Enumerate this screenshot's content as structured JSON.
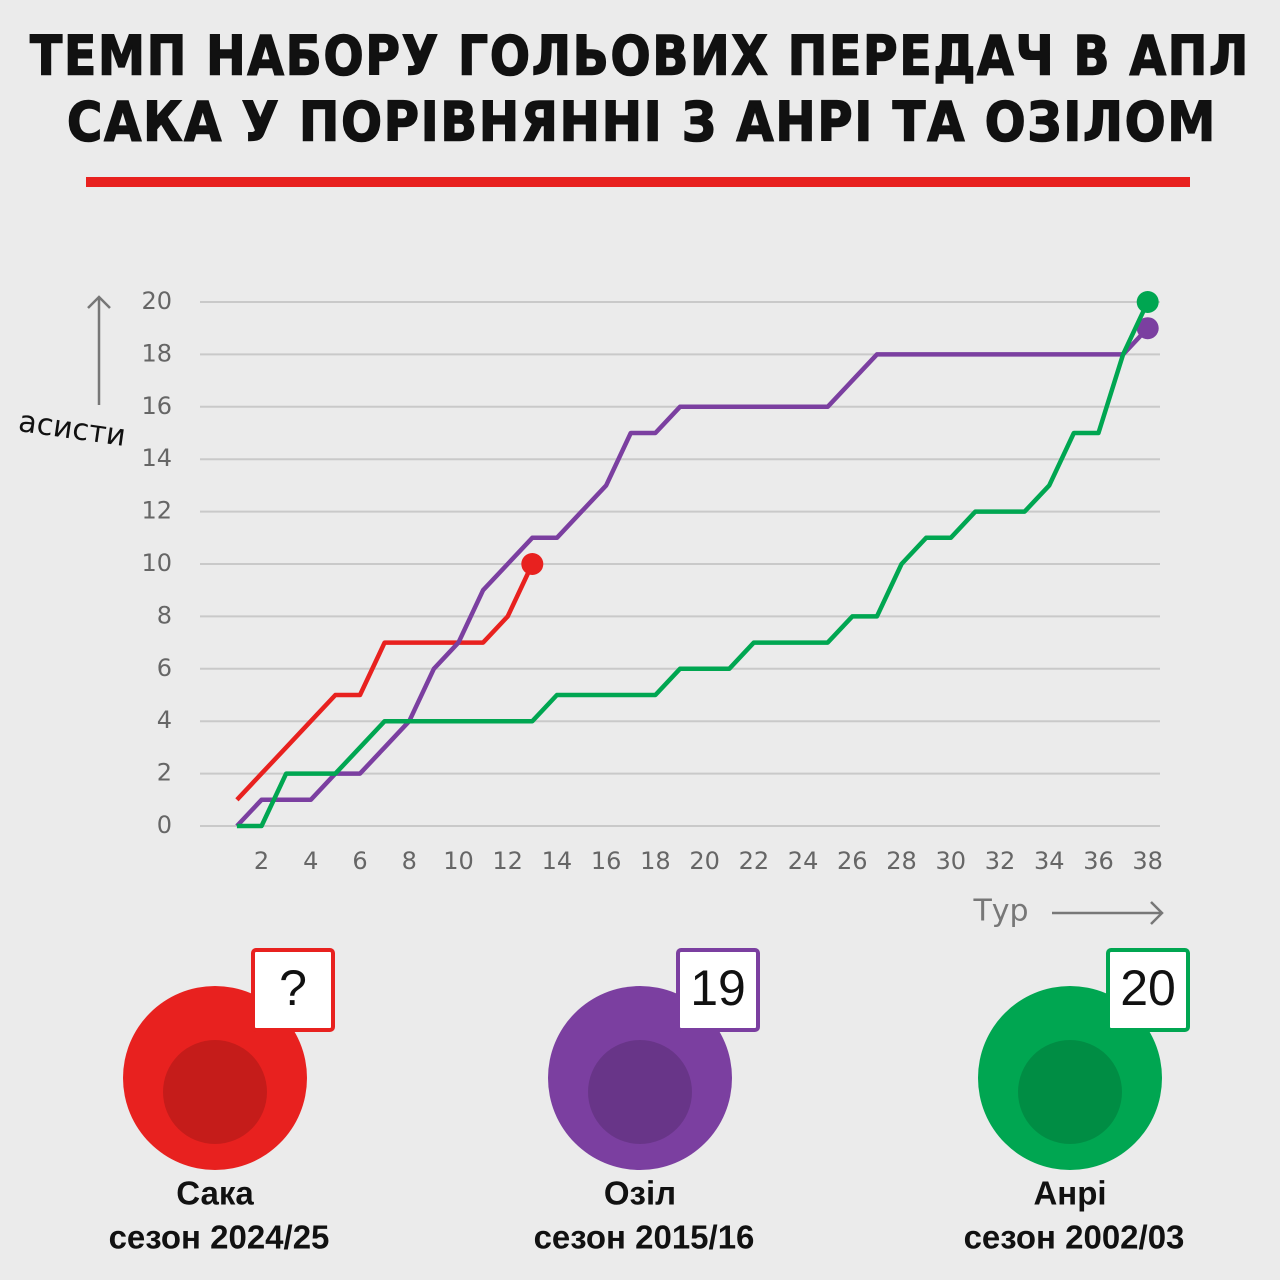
{
  "chart_data": {
    "type": "line",
    "title": "ТЕМП НАБОРУ ГОЛЬОВИХ ПЕРЕДАЧ В АПЛ",
    "subtitle": "САКА У ПОРІВНЯННІ З АНРІ ТА ОЗІЛОМ",
    "ylabel": "асисти",
    "xlabel": "Тур",
    "x": [
      1,
      2,
      3,
      4,
      5,
      6,
      7,
      8,
      9,
      10,
      11,
      12,
      13,
      14,
      15,
      16,
      17,
      18,
      19,
      20,
      21,
      22,
      23,
      24,
      25,
      26,
      27,
      28,
      29,
      30,
      31,
      32,
      33,
      34,
      35,
      36,
      37,
      38
    ],
    "series": [
      {
        "name": "Сака",
        "color": "#e8211f",
        "values": [
          1,
          2,
          3,
          4,
          5,
          5,
          7,
          7,
          7,
          7,
          7,
          8,
          10,
          null,
          null,
          null,
          null,
          null,
          null,
          null,
          null,
          null,
          null,
          null,
          null,
          null,
          null,
          null,
          null,
          null,
          null,
          null,
          null,
          null,
          null,
          null,
          null,
          null
        ]
      },
      {
        "name": "Озіл",
        "color": "#7b3fa0",
        "values": [
          0,
          1,
          1,
          1,
          2,
          2,
          3,
          4,
          6,
          7,
          9,
          10,
          11,
          11,
          12,
          13,
          15,
          15,
          16,
          16,
          16,
          16,
          16,
          16,
          16,
          17,
          18,
          18,
          18,
          18,
          18,
          18,
          18,
          18,
          18,
          18,
          18,
          19
        ]
      },
      {
        "name": "Анрі",
        "color": "#00a651",
        "values": [
          0,
          0,
          2,
          2,
          2,
          3,
          4,
          4,
          4,
          4,
          4,
          4,
          4,
          5,
          5,
          5,
          5,
          5,
          6,
          6,
          6,
          7,
          7,
          7,
          7,
          8,
          8,
          10,
          11,
          11,
          12,
          12,
          12,
          13,
          15,
          15,
          18,
          20
        ]
      }
    ],
    "xlim": [
      -0.5,
      38.5
    ],
    "ylim": [
      0,
      20
    ],
    "xticks": [
      2,
      4,
      6,
      8,
      10,
      12,
      14,
      16,
      18,
      20,
      22,
      24,
      26,
      28,
      30,
      32,
      34,
      36,
      38
    ],
    "yticks": [
      0,
      2,
      4,
      6,
      8,
      10,
      12,
      14,
      16,
      18,
      20
    ],
    "grid": true
  },
  "players": [
    {
      "badge": "?",
      "name": "Сака",
      "season": "сезон 2024/25"
    },
    {
      "badge": "19",
      "name": "Озіл",
      "season": "сезон 2015/16"
    },
    {
      "badge": "20",
      "name": "Анрі",
      "season": "сезон 2002/03"
    }
  ]
}
